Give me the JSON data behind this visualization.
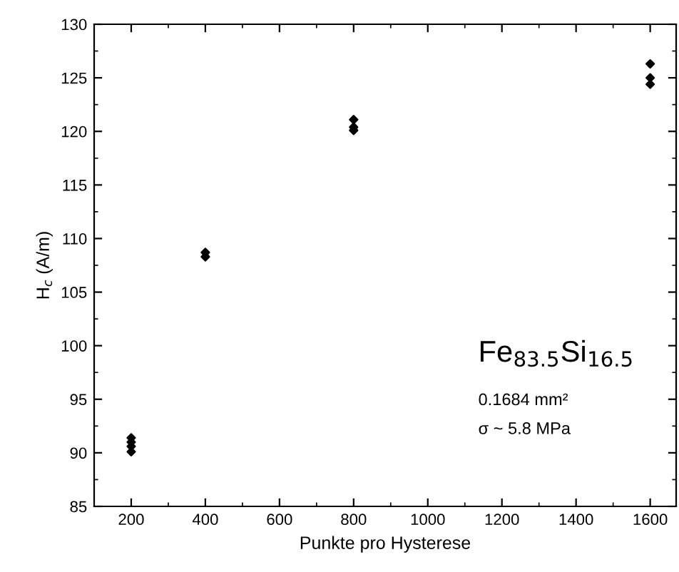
{
  "chart_data": {
    "type": "scatter",
    "xlabel": "Punkte pro Hysterese",
    "ylabel": "H$_{c}$ (A/m)",
    "x": [
      200,
      200,
      200,
      200,
      400,
      400,
      800,
      800,
      800,
      1600,
      1600,
      1600
    ],
    "series": [
      {
        "color": "#000000",
        "values": [
          90.1,
          90.6,
          91.0,
          91.4,
          108.3,
          108.7,
          120.1,
          120.4,
          121.1,
          124.4,
          125.0,
          126.3
        ]
      }
    ],
    "marker": "diamond",
    "xlim": [
      100,
      1670
    ],
    "ylim": [
      85,
      130
    ],
    "xticks": [
      200,
      400,
      600,
      800,
      1000,
      1200,
      1400,
      1600
    ],
    "yticks": [
      85,
      90,
      95,
      100,
      105,
      110,
      115,
      120,
      125,
      130
    ],
    "grid": false,
    "legend": false,
    "annotations": [
      "Fe$_{83.5}$Si$_{16.5}$",
      "0.1684 mm²",
      "σ ~ 5.8 MPa"
    ]
  }
}
